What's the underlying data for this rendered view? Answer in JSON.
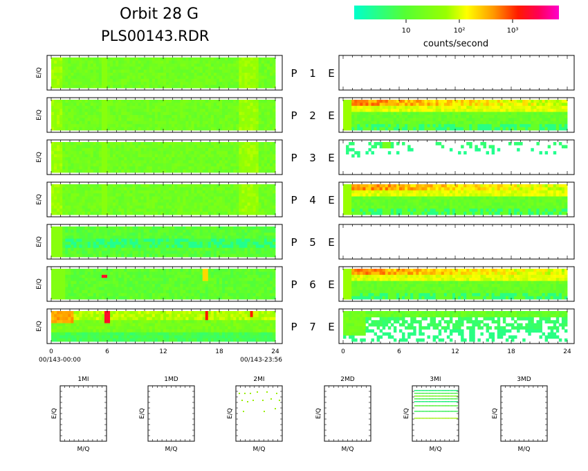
{
  "header": {
    "title_line1": "Orbit 28 G",
    "title_line2": "PLS00143.RDR"
  },
  "colorbar": {
    "label": "counts/second",
    "ticks": [
      "10",
      "10²",
      "10³"
    ],
    "colors": [
      "#00ffcc",
      "#33ff66",
      "#66ff00",
      "#ccff00",
      "#ffff00",
      "#ff9900",
      "#ff3300",
      "#ff0033",
      "#ff00cc"
    ]
  },
  "time_axis": {
    "ticks": [
      "0",
      "6",
      "12",
      "18",
      "24"
    ],
    "start_label": "00/143-00:00",
    "end_label": "00/143-23:56"
  },
  "chart_data": [
    {
      "type": "heatmap",
      "title": "",
      "xlabel": "",
      "ylabel": "E/Q",
      "xlim": [
        0,
        24
      ],
      "grid": false,
      "rows": [
        {
          "channel": "P 1",
          "label_p": "P",
          "label_n": "1",
          "label_e": "E",
          "p_panel_level": "mid",
          "e_panel_level": "empty"
        },
        {
          "channel": "P 2",
          "label_p": "P",
          "label_n": "2",
          "label_e": "E",
          "p_panel_level": "mid",
          "e_panel_level": "high-band"
        },
        {
          "channel": "P 3",
          "label_p": "P",
          "label_n": "3",
          "label_e": "E",
          "p_panel_level": "mid",
          "e_panel_level": "sparse"
        },
        {
          "channel": "P 4",
          "label_p": "P",
          "label_n": "4",
          "label_e": "E",
          "p_panel_level": "mid",
          "e_panel_level": "high-band"
        },
        {
          "channel": "P 5",
          "label_p": "P",
          "label_n": "5",
          "label_e": "E",
          "p_panel_level": "low-mid",
          "e_panel_level": "empty"
        },
        {
          "channel": "P 6",
          "label_p": "P",
          "label_n": "6",
          "label_e": "E",
          "p_panel_level": "low-mid with hot spots near 5 h and 16 h",
          "e_panel_level": "high-band"
        },
        {
          "channel": "P 7",
          "label_p": "P",
          "label_n": "7",
          "label_e": "E",
          "p_panel_level": "mid with hot spots near 0.5, 5.5, 16 and 21 h",
          "e_panel_level": "low-sparse"
        }
      ]
    },
    {
      "type": "scatter",
      "xlabel": "M/Q",
      "ylabel": "E/Q",
      "panels": [
        {
          "title": "1MI",
          "points": "none"
        },
        {
          "title": "1MD",
          "points": "none"
        },
        {
          "title": "2MI",
          "points": "few"
        },
        {
          "title": "2MD",
          "points": "none"
        },
        {
          "title": "3MI",
          "points": "horizontal bands"
        },
        {
          "title": "3MD",
          "points": "none"
        }
      ]
    }
  ]
}
